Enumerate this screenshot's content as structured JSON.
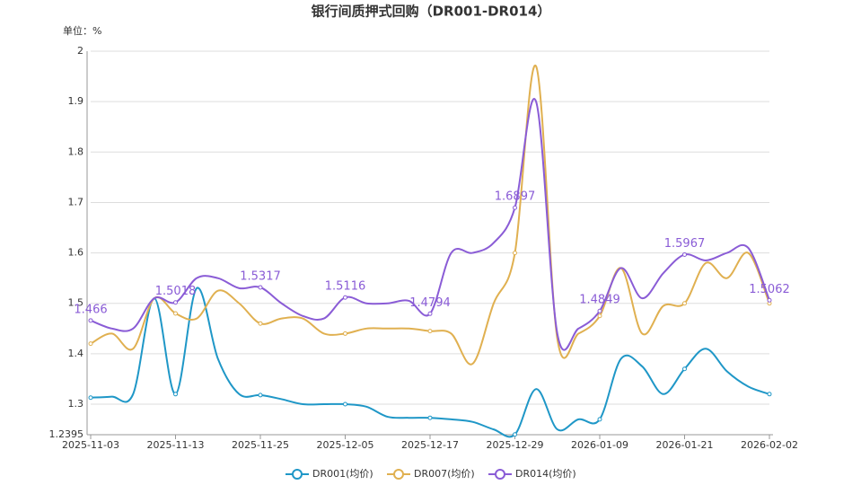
{
  "chart_data": {
    "type": "line",
    "title": "银行间质押式回购（DR001-DR014）",
    "y_unit_label": "单位：%",
    "categories": [
      "2025-11-03",
      null,
      null,
      null,
      "2025-11-13",
      null,
      null,
      null,
      "2025-11-25",
      null,
      null,
      null,
      "2025-12-05",
      null,
      null,
      null,
      "2025-12-17",
      null,
      null,
      null,
      "2025-12-29",
      null,
      null,
      null,
      "2026-01-09",
      null,
      null,
      null,
      "2026-01-21",
      null,
      null,
      null,
      "2026-02-02"
    ],
    "series": [
      {
        "name": "DR001(均价)",
        "color": "#1f97c7",
        "values": [
          1.313,
          1.315,
          1.32,
          1.51,
          1.32,
          1.53,
          1.39,
          1.32,
          1.318,
          1.31,
          1.3,
          1.3,
          1.3,
          1.295,
          1.275,
          1.273,
          1.273,
          1.27,
          1.265,
          1.25,
          1.24,
          1.33,
          1.25,
          1.27,
          1.27,
          1.39,
          1.375,
          1.32,
          1.37,
          1.41,
          1.365,
          1.335,
          1.32
        ]
      },
      {
        "name": "DR007(均价)",
        "color": "#e0b050",
        "values": [
          1.42,
          1.44,
          1.41,
          1.51,
          1.48,
          1.47,
          1.525,
          1.5,
          1.46,
          1.47,
          1.47,
          1.44,
          1.44,
          1.45,
          1.45,
          1.45,
          1.445,
          1.44,
          1.38,
          1.5,
          1.6,
          1.97,
          1.43,
          1.44,
          1.475,
          1.57,
          1.44,
          1.495,
          1.5,
          1.58,
          1.55,
          1.6,
          1.5
        ]
      },
      {
        "name": "DR014(均价)",
        "color": "#8a5cd6",
        "values": [
          1.466,
          1.45,
          1.45,
          1.51,
          1.5018,
          1.55,
          1.55,
          1.53,
          1.5317,
          1.5,
          1.475,
          1.47,
          1.5116,
          1.5,
          1.5,
          1.505,
          1.4794,
          1.6,
          1.6,
          1.62,
          1.6897,
          1.9,
          1.44,
          1.45,
          1.4849,
          1.57,
          1.51,
          1.56,
          1.5967,
          1.585,
          1.6,
          1.61,
          1.5062
        ],
        "value_labels": [
          "1.466",
          null,
          null,
          null,
          "1.5018",
          null,
          null,
          null,
          "1.5317",
          null,
          null,
          null,
          "1.5116",
          null,
          null,
          null,
          "1.4794",
          null,
          null,
          null,
          "1.6897",
          null,
          null,
          null,
          "1.4849",
          null,
          null,
          null,
          "1.5967",
          null,
          null,
          null,
          "1.5062"
        ]
      }
    ],
    "ylim": [
      1.2395,
      2
    ],
    "yticks": [
      {
        "value": 1.2395,
        "label": "1.2395"
      },
      1.3,
      1.4,
      1.5,
      1.6,
      1.7,
      1.8,
      1.9,
      2
    ],
    "grid": true,
    "legend": "bottom"
  }
}
